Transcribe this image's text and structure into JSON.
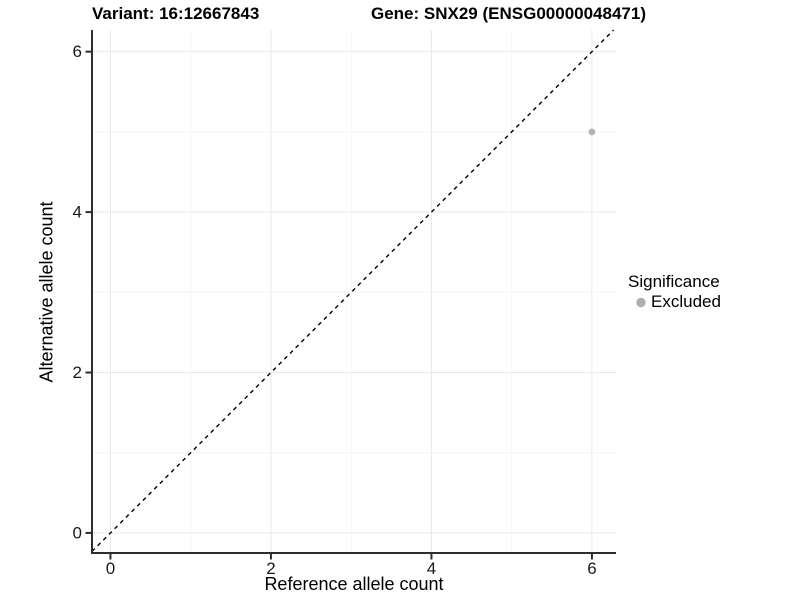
{
  "header": {
    "variant_title": "Variant: 16:12667843",
    "gene_title": "Gene: SNX29 (ENSG00000048471)"
  },
  "chart_data": {
    "type": "scatter",
    "title": "Variant: 16:12667843   Gene: SNX29 (ENSG00000048471)",
    "xlabel": "Reference allele count",
    "ylabel": "Alternative allele count",
    "xlim": [
      -0.23,
      6.3
    ],
    "ylim": [
      -0.25,
      6.27
    ],
    "x_ticks": [
      0,
      2,
      4,
      6
    ],
    "y_ticks": [
      0,
      2,
      4,
      6
    ],
    "x_minor_gridlines": [
      1,
      3,
      5
    ],
    "y_minor_gridlines": [
      1,
      3,
      5
    ],
    "grid": "major and minor gridlines on white background",
    "identity_line": {
      "equation": "y = x",
      "style": "dashed",
      "color": "#000000"
    },
    "series": [
      {
        "name": "Excluded",
        "color": "#b3b3b3",
        "points": [
          {
            "x": 6,
            "y": 5
          }
        ]
      }
    ],
    "legend": {
      "title": "Significance",
      "position": "right",
      "items": [
        {
          "label": "Excluded",
          "color": "#afafaf"
        }
      ]
    },
    "colors": {
      "major_grid": "#e9e9e9",
      "minor_grid": "#f4f4f4",
      "axis": "#2e2e2e",
      "tick_label": "#1a1a1a",
      "background": "#ffffff"
    }
  }
}
